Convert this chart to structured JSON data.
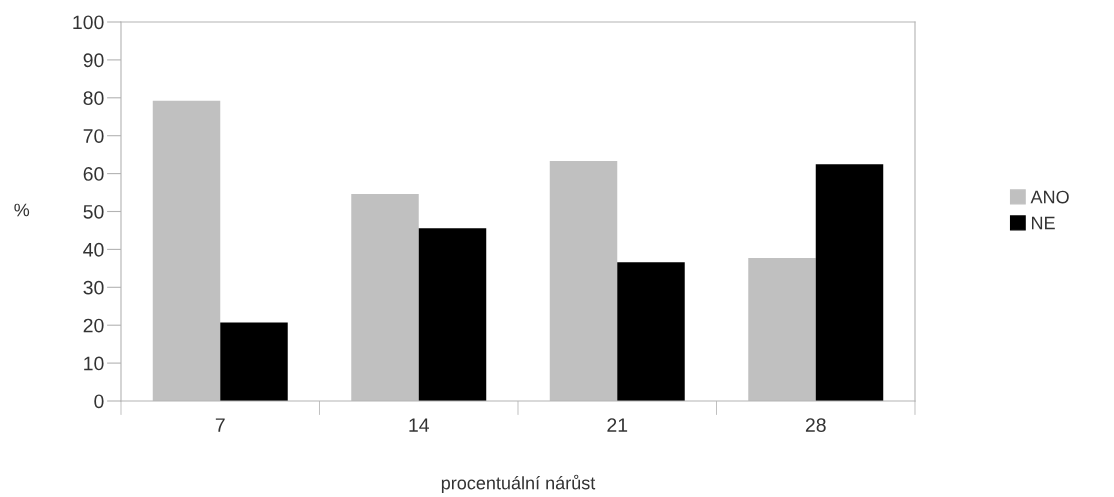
{
  "chart_data": {
    "type": "bar",
    "xlabel": "procentuální nárůst",
    "ylabel": "%",
    "categories": [
      "7",
      "14",
      "21",
      "28"
    ],
    "series": [
      {
        "name": "ANO",
        "color": "#c0c0c0",
        "values": [
          79.2,
          54.6,
          63.3,
          37.7
        ]
      },
      {
        "name": "NE",
        "color": "#000000",
        "values": [
          20.7,
          45.6,
          36.6,
          62.5
        ]
      }
    ],
    "ylim": [
      0,
      100
    ],
    "yticks": [
      0,
      10,
      20,
      30,
      40,
      50,
      60,
      70,
      80,
      90,
      100
    ],
    "grid": false,
    "legend": "right"
  }
}
